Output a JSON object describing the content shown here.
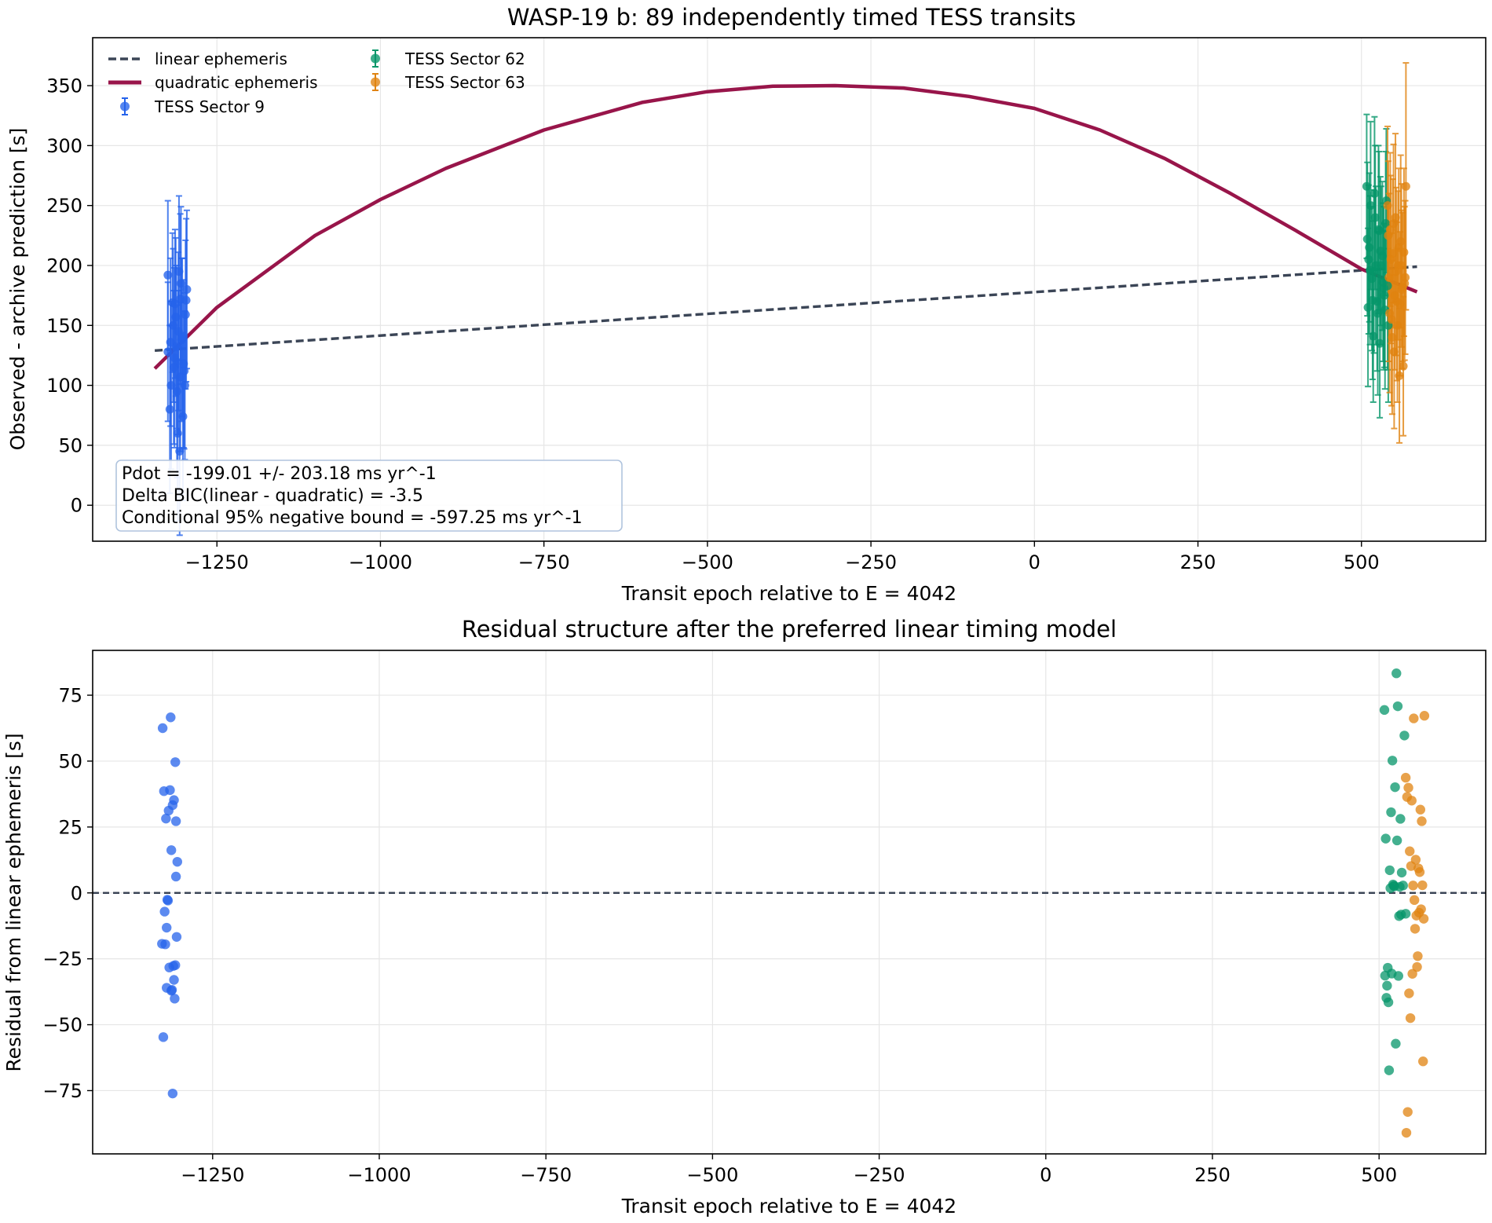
{
  "colors": {
    "sector9": "#2563eb",
    "sector62": "#059669",
    "sector63": "#e08310",
    "linear": "#3b4556",
    "quadratic": "#98154a",
    "grid": "#e6e6e6",
    "zero_line": "#3b4556",
    "anno_border": "#b0c4de"
  },
  "chart_data": [
    {
      "type": "scatter",
      "title": "WASP-19 b: 89 independently timed TESS transits",
      "xlabel": "Transit epoch relative to E = 4042",
      "ylabel": "Observed - archive prediction [s]",
      "xlim": [
        -1440,
        690
      ],
      "ylim": [
        -30,
        390
      ],
      "xticks": [
        -1250,
        -1000,
        -750,
        -500,
        -250,
        0,
        250,
        500
      ],
      "yticks": [
        0,
        50,
        100,
        150,
        200,
        250,
        300,
        350
      ],
      "grid": true,
      "legend_position": "upper-left",
      "legend_entries": [
        "linear ephemeris",
        "quadratic ephemeris",
        "TESS Sector 9",
        "TESS Sector 62",
        "TESS Sector 63"
      ],
      "lines": [
        {
          "name": "linear ephemeris",
          "style": "dashed",
          "color_key": "linear",
          "x": [
            -1345,
            585
          ],
          "y": [
            129,
            199
          ]
        },
        {
          "name": "quadratic ephemeris",
          "style": "solid",
          "color_key": "quadratic",
          "x": [
            -1345,
            -1250,
            -1100,
            -1000,
            -900,
            -750,
            -600,
            -500,
            -400,
            -305,
            -200,
            -100,
            0,
            100,
            200,
            300,
            400,
            500,
            585
          ],
          "y": [
            114,
            165,
            225,
            255,
            281,
            313,
            336,
            345,
            349.5,
            350,
            348,
            341,
            331,
            313,
            289,
            260,
            229,
            197,
            178
          ]
        }
      ],
      "annotation": [
        "Pdot = -199.01 +/- 203.18 ms yr^-1",
        "Delta BIC(linear - quadratic) = -3.5",
        "Conditional 95% negative bound = -597.25 ms yr^-1"
      ],
      "series": [
        {
          "name": "TESS Sector 9",
          "color_key": "sector9",
          "x": [
            -1325,
            -1321,
            -1318,
            -1315,
            -1313,
            -1311,
            -1309,
            -1308,
            -1306,
            -1304,
            -1302,
            -1300,
            -1298,
            -1296,
            -1325,
            -1320,
            -1317,
            -1314,
            -1312,
            -1310,
            -1307,
            -1305,
            -1303,
            -1301,
            -1299,
            -1297,
            -1322,
            -1316,
            -1309,
            -1306
          ],
          "y": [
            192,
            136,
            169,
            123,
            157,
            95,
            119,
            195,
            172,
            138,
            74,
            112,
            159,
            180,
            128,
            100,
            150,
            168,
            132,
            60,
            45,
            185,
            140,
            118,
            100,
            171,
            80,
            115,
            145,
            107
          ],
          "err": [
            62,
            70,
            58,
            75,
            66,
            72,
            60,
            63,
            71,
            68,
            70,
            65,
            62,
            66,
            58,
            70,
            64,
            62,
            68,
            73,
            70,
            64,
            66,
            70,
            62,
            68,
            70,
            64,
            66,
            62
          ]
        },
        {
          "name": "TESS Sector 62",
          "color_key": "sector62",
          "x": [
            508,
            510,
            512,
            514,
            516,
            518,
            520,
            522,
            524,
            526,
            528,
            530,
            532,
            534,
            536,
            538,
            540,
            509,
            513,
            517,
            521,
            525,
            529,
            533,
            537,
            541,
            511,
            519,
            527,
            535
          ],
          "y": [
            266,
            165,
            215,
            250,
            189,
            141,
            260,
            200,
            170,
            230,
            135,
            200,
            208,
            181,
            163,
            254,
            183,
            222,
            196,
            171,
            240,
            160,
            212,
            186,
            235,
            150,
            205,
            195,
            229,
            175
          ],
          "err": [
            60,
            66,
            62,
            70,
            60,
            55,
            64,
            66,
            58,
            70,
            62,
            66,
            62,
            68,
            66,
            60,
            70,
            64,
            62,
            66,
            60,
            68,
            62,
            66,
            60,
            64,
            62,
            68,
            66,
            60
          ]
        },
        {
          "name": "TESS Sector 63",
          "color_key": "sector63",
          "x": [
            540,
            542,
            544,
            546,
            548,
            550,
            552,
            554,
            556,
            558,
            560,
            562,
            564,
            566,
            568,
            541,
            543,
            545,
            547,
            549,
            551,
            553,
            555,
            557,
            559,
            561,
            563,
            565,
            567
          ],
          "y": [
            250,
            190,
            230,
            155,
            210,
            128,
            240,
            170,
            200,
            108,
            220,
            180,
            116,
            185,
            266,
            225,
            160,
            205,
            140,
            235,
            175,
            195,
            150,
            215,
            168,
            200,
            182,
            211,
            190
          ],
          "err": [
            66,
            70,
            64,
            72,
            62,
            64,
            70,
            66,
            62,
            56,
            72,
            66,
            58,
            64,
            103,
            62,
            66,
            70,
            64,
            66,
            62,
            70,
            64,
            66,
            60,
            68,
            62,
            70,
            64
          ]
        }
      ]
    },
    {
      "type": "scatter",
      "title": "Residual structure after the preferred linear timing model",
      "xlabel": "Transit epoch relative to E = 4042",
      "ylabel": "Residual from linear ephemeris [s]",
      "xlim": [
        -1430,
        660
      ],
      "ylim": [
        -99,
        92
      ],
      "xticks": [
        -1250,
        -1000,
        -750,
        -500,
        -250,
        0,
        250,
        500
      ],
      "yticks": [
        -75,
        -50,
        -25,
        0,
        25,
        50,
        75
      ],
      "grid": true,
      "reference_line": {
        "y": 0,
        "style": "dashed",
        "color_key": "zero_line"
      },
      "series": [
        {
          "name": "TESS Sector 9",
          "color_key": "sector9",
          "x": [
            -1325,
            -1323,
            -1320,
            -1319,
            -1318,
            -1316,
            -1314,
            -1313,
            -1312,
            -1310,
            -1309,
            -1308,
            -1306,
            -1305,
            -1304,
            -1303,
            -1322,
            -1321,
            -1319,
            -1317,
            -1315,
            -1312,
            -1310,
            -1308,
            -1307,
            -1306,
            -1305,
            -1311,
            -1324,
            -1326
          ],
          "y": [
            62.5,
            38.6,
            28.2,
            -13.2,
            -2.6,
            31.2,
            39,
            66.6,
            16.2,
            33.3,
            -27.7,
            35.2,
            49.6,
            27.2,
            -16.7,
            11.8,
            -7.1,
            -19.5,
            -36,
            -2.9,
            -28.3,
            -37.1,
            -76.1,
            -33,
            -40.1,
            -27.4,
            6.2,
            -36.8,
            -54.7,
            -19.3
          ]
        },
        {
          "name": "TESS Sector 62",
          "color_key": "sector62",
          "x": [
            508,
            510,
            512,
            514,
            516,
            518,
            520,
            522,
            524,
            526,
            528,
            530,
            532,
            534,
            536,
            538,
            540,
            509,
            511,
            513,
            515,
            517,
            519,
            521,
            523,
            525,
            527,
            529,
            531,
            533
          ],
          "y": [
            69.4,
            20.6,
            -35.2,
            -41.5,
            8.6,
            30.6,
            50.2,
            2.7,
            40.1,
            83.3,
            70.8,
            -8.8,
            28.1,
            7.7,
            2.8,
            59.7,
            -7.9,
            -31.4,
            -39.8,
            -28.4,
            -67.3,
            1.8,
            -30.6,
            3.2,
            2.5,
            -57.2,
            19.9,
            -31.5,
            2.3,
            -8.2
          ]
        },
        {
          "name": "TESS Sector 63",
          "color_key": "sector63",
          "x": [
            540,
            542,
            544,
            546,
            548,
            550,
            552,
            554,
            556,
            558,
            560,
            562,
            564,
            566,
            568,
            541,
            543,
            545,
            547,
            549,
            551,
            553,
            555,
            557,
            559,
            561,
            563,
            565,
            567
          ],
          "y": [
            43.7,
            36.4,
            39.9,
            15.8,
            10.2,
            -30.7,
            66.2,
            -13.6,
            -8.6,
            -24,
            -7.5,
            31.6,
            27.2,
            -63.9,
            67.2,
            -91,
            -83.1,
            -38.1,
            -47.5,
            35,
            2.8,
            -2.7,
            12.6,
            -28.1,
            9.3,
            7.9,
            -6.2,
            2.9,
            -9.8
          ]
        }
      ]
    }
  ]
}
